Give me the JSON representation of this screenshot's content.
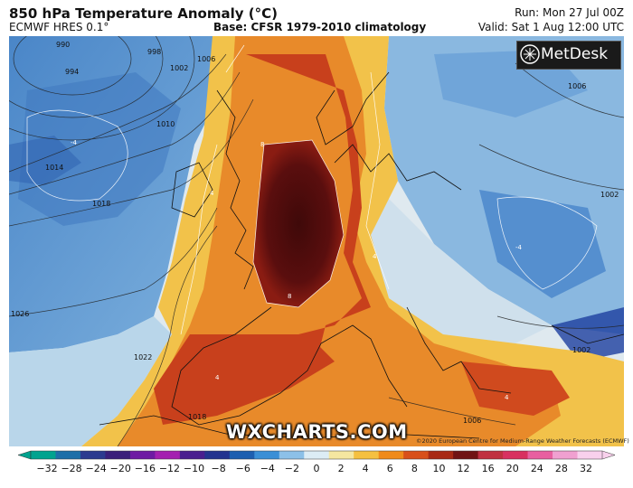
{
  "header": {
    "title": "850 hPa Temperature Anomaly (°C)",
    "model": "ECMWF HRES 0.1°",
    "base": "Base: CFSR 1979-2010 climatology",
    "run": "Run: Mon 27 Jul 00Z",
    "valid": "Valid: Sat 1 Aug 12:00 UTC"
  },
  "branding": {
    "metdesk": "MetDesk",
    "wxcharts": "WXCHARTS.COM",
    "copyright": "©2020 European Centre for Medium-Range Weather Forecasts (ECMWF)"
  },
  "pressure_labels": [
    "990",
    "994",
    "998",
    "1002",
    "1006",
    "1010",
    "1014",
    "1018",
    "1026",
    "1022",
    "1018",
    "1006",
    "1002",
    "1002",
    "1006"
  ],
  "anomaly_labels": [
    "8",
    "4",
    "8",
    "4",
    "-4",
    "4",
    "-4",
    "4"
  ],
  "colorbar": {
    "ticks": [
      -32,
      -28,
      -24,
      -20,
      -16,
      -12,
      -10,
      -8,
      -6,
      -4,
      -2,
      0,
      2,
      4,
      6,
      8,
      10,
      12,
      16,
      20,
      24,
      28,
      32
    ],
    "tick_labels": [
      "−32",
      "−28",
      "−24",
      "−20",
      "−16",
      "−12",
      "−10",
      "−8",
      "−6",
      "−4",
      "−2",
      "0",
      "2",
      "4",
      "6",
      "8",
      "10",
      "12",
      "16",
      "20",
      "24",
      "28",
      "32"
    ],
    "colors": [
      "#00a38f",
      "#1d6fa8",
      "#2b3a8f",
      "#3a1f7a",
      "#6e1aa3",
      "#a41fb0",
      "#4a1f8f",
      "#24348f",
      "#1d5fb0",
      "#3a8fd6",
      "#8cc0e8",
      "#dcecf5",
      "#f5e6a0",
      "#f5c040",
      "#f08a1a",
      "#d8501a",
      "#a82a14",
      "#701414",
      "#c03040",
      "#d83060",
      "#e860a0",
      "#f0a0d0",
      "#f8d0ec"
    ]
  },
  "colors": {
    "sea_cold": "#5b9bd8",
    "sea_cool": "#a9cde8",
    "neutral": "#e8eef2",
    "warm": "#f2c24a",
    "hot": "#e06a1a",
    "very_hot": "#c0341a",
    "extreme": "#5a0e0e"
  }
}
